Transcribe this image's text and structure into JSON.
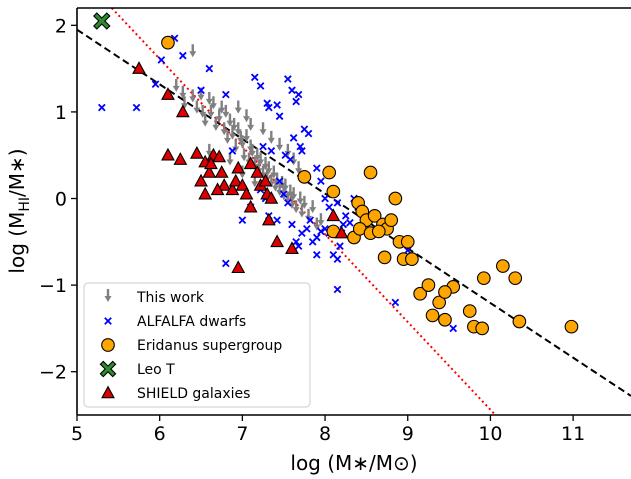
{
  "chart_data": {
    "type": "scatter",
    "xlabel": "log (M∗/M⊙)",
    "ylabel_parts": {
      "main": "log (M",
      "sub": "HI",
      "tail": "/M∗)"
    },
    "xlim": [
      5,
      11.7
    ],
    "ylim": [
      -2.5,
      2.2
    ],
    "x_ticks": [
      5,
      6,
      7,
      8,
      9,
      10,
      11
    ],
    "y_ticks": [
      -2,
      -1,
      0,
      1,
      2
    ],
    "x_tick_labels": [
      "5",
      "6",
      "7",
      "8",
      "9",
      "10",
      "11"
    ],
    "y_tick_labels": [
      "−2",
      "−1",
      "0",
      "1",
      "2"
    ],
    "grid": false,
    "legend_position": "lower-left",
    "lines": [
      {
        "style": "dashed",
        "color": "#000000",
        "points": [
          [
            5.0,
            1.95
          ],
          [
            11.7,
            -2.28
          ]
        ]
      },
      {
        "style": "dotted",
        "color": "#ff0000",
        "points": [
          [
            5.42,
            2.2
          ],
          [
            10.06,
            -2.5
          ]
        ]
      }
    ],
    "series": [
      {
        "name": "This work",
        "marker": "arrow-down",
        "color": "#808080",
        "points": [
          [
            6.4,
            1.7
          ],
          [
            6.2,
            1.3
          ],
          [
            6.28,
            1.22
          ],
          [
            6.3,
            1.1
          ],
          [
            6.4,
            1.18
          ],
          [
            6.45,
            1.05
          ],
          [
            6.5,
            1.2
          ],
          [
            6.52,
            1.0
          ],
          [
            6.55,
            0.9
          ],
          [
            6.6,
            1.15
          ],
          [
            6.62,
            1.0
          ],
          [
            6.65,
            1.1
          ],
          [
            6.68,
            0.85
          ],
          [
            6.72,
            0.95
          ],
          [
            6.75,
            1.05
          ],
          [
            6.78,
            0.8
          ],
          [
            6.8,
            1.0
          ],
          [
            6.82,
            0.7
          ],
          [
            6.85,
            0.9
          ],
          [
            6.88,
            0.75
          ],
          [
            6.9,
            0.85
          ],
          [
            6.92,
            0.6
          ],
          [
            6.95,
            0.8
          ],
          [
            6.98,
            0.7
          ],
          [
            7.0,
            0.65
          ],
          [
            7.02,
            0.5
          ],
          [
            7.05,
            0.72
          ],
          [
            7.08,
            0.45
          ],
          [
            7.1,
            0.6
          ],
          [
            7.12,
            0.55
          ],
          [
            7.15,
            0.4
          ],
          [
            7.18,
            0.5
          ],
          [
            7.2,
            0.35
          ],
          [
            7.22,
            0.45
          ],
          [
            7.25,
            0.3
          ],
          [
            7.28,
            0.4
          ],
          [
            7.3,
            0.25
          ],
          [
            7.32,
            0.35
          ],
          [
            7.35,
            0.2
          ],
          [
            7.38,
            0.3
          ],
          [
            7.4,
            0.15
          ],
          [
            7.42,
            0.22
          ],
          [
            7.45,
            0.1
          ],
          [
            7.48,
            0.18
          ],
          [
            7.5,
            0.05
          ],
          [
            7.52,
            0.15
          ],
          [
            7.55,
            0.0
          ],
          [
            7.58,
            0.08
          ],
          [
            7.6,
            -0.05
          ],
          [
            7.62,
            0.05
          ],
          [
            7.65,
            -0.1
          ],
          [
            7.7,
            0.0
          ],
          [
            7.72,
            -0.15
          ],
          [
            7.75,
            -0.05
          ],
          [
            7.8,
            -0.2
          ],
          [
            7.85,
            -0.1
          ],
          [
            7.9,
            -0.3
          ],
          [
            7.95,
            -0.25
          ],
          [
            7.55,
            0.55
          ],
          [
            7.62,
            0.45
          ],
          [
            7.68,
            0.35
          ],
          [
            6.95,
            1.05
          ],
          [
            7.05,
            0.95
          ],
          [
            7.1,
            0.85
          ],
          [
            7.25,
            0.8
          ],
          [
            7.35,
            0.7
          ],
          [
            7.45,
            0.62
          ],
          [
            6.6,
            0.55
          ],
          [
            6.85,
            0.45
          ],
          [
            7.0,
            0.3
          ],
          [
            7.15,
            0.2
          ]
        ]
      },
      {
        "name": "ALFALFA dwarfs",
        "marker": "x",
        "color": "#0000ff",
        "points": [
          [
            5.3,
            1.05
          ],
          [
            5.72,
            1.05
          ],
          [
            5.95,
            1.32
          ],
          [
            6.02,
            1.6
          ],
          [
            6.18,
            1.85
          ],
          [
            6.28,
            1.65
          ],
          [
            6.5,
            1.25
          ],
          [
            6.6,
            1.5
          ],
          [
            6.8,
            1.2
          ],
          [
            6.88,
            0.55
          ],
          [
            7.15,
            1.4
          ],
          [
            7.22,
            1.3
          ],
          [
            7.3,
            1.1
          ],
          [
            7.32,
            1.05
          ],
          [
            7.42,
            1.08
          ],
          [
            7.55,
            1.38
          ],
          [
            7.6,
            1.25
          ],
          [
            7.65,
            1.12
          ],
          [
            7.72,
            0.55
          ],
          [
            7.75,
            0.8
          ],
          [
            7.8,
            0.75
          ],
          [
            7.52,
            0.5
          ],
          [
            7.58,
            0.45
          ],
          [
            7.62,
            0.7
          ],
          [
            7.7,
            0.6
          ],
          [
            7.25,
            0.6
          ],
          [
            7.35,
            0.55
          ],
          [
            7.22,
            0.1
          ],
          [
            7.45,
            0.2
          ],
          [
            7.5,
            0.05
          ],
          [
            7.55,
            -0.05
          ],
          [
            7.28,
            0.0
          ],
          [
            7.32,
            -0.2
          ],
          [
            7.42,
            -0.25
          ],
          [
            7.6,
            -0.3
          ],
          [
            7.65,
            -0.5
          ],
          [
            7.68,
            -0.55
          ],
          [
            7.72,
            -0.4
          ],
          [
            7.78,
            -0.35
          ],
          [
            7.82,
            -0.25
          ],
          [
            7.85,
            -0.5
          ],
          [
            7.9,
            -0.45
          ],
          [
            7.95,
            -0.38
          ],
          [
            8.0,
            -0.35
          ],
          [
            8.05,
            -0.4
          ],
          [
            8.1,
            -0.65
          ],
          [
            8.15,
            -0.7
          ],
          [
            8.18,
            -0.55
          ],
          [
            8.2,
            -0.4
          ],
          [
            8.22,
            -0.3
          ],
          [
            8.25,
            -0.2
          ],
          [
            8.05,
            -0.1
          ],
          [
            8.0,
            0.0
          ],
          [
            8.15,
            -0.05
          ],
          [
            8.3,
            -0.28
          ],
          [
            8.35,
            -0.45
          ],
          [
            8.4,
            -0.1
          ],
          [
            8.45,
            -0.15
          ],
          [
            8.35,
            0.0
          ],
          [
            8.15,
            -1.05
          ],
          [
            7.9,
            -0.65
          ],
          [
            7.1,
            -0.1
          ],
          [
            6.8,
            -0.75
          ],
          [
            7.0,
            -0.25
          ],
          [
            7.9,
            0.35
          ],
          [
            7.95,
            0.2
          ],
          [
            8.85,
            -1.2
          ],
          [
            9.0,
            -0.6
          ],
          [
            9.55,
            -1.5
          ],
          [
            7.45,
            0.95
          ],
          [
            7.68,
            1.2
          ]
        ]
      },
      {
        "name": "Eridanus supergroup",
        "marker": "circle",
        "color": "#ffa500",
        "points": [
          [
            6.1,
            1.8
          ],
          [
            7.75,
            0.25
          ],
          [
            8.05,
            0.3
          ],
          [
            8.1,
            0.08
          ],
          [
            8.4,
            -0.05
          ],
          [
            8.45,
            -0.15
          ],
          [
            8.5,
            -0.25
          ],
          [
            8.55,
            0.3
          ],
          [
            8.6,
            -0.2
          ],
          [
            8.7,
            -0.3
          ],
          [
            8.75,
            -0.35
          ],
          [
            8.8,
            -0.25
          ],
          [
            8.85,
            0.0
          ],
          [
            8.35,
            -0.45
          ],
          [
            8.42,
            -0.35
          ],
          [
            8.55,
            -0.4
          ],
          [
            8.65,
            -0.38
          ],
          [
            8.72,
            -0.68
          ],
          [
            8.9,
            -0.5
          ],
          [
            8.95,
            -0.7
          ],
          [
            9.0,
            -0.5
          ],
          [
            9.05,
            -0.7
          ],
          [
            9.15,
            -1.1
          ],
          [
            9.3,
            -1.35
          ],
          [
            9.38,
            -1.2
          ],
          [
            9.45,
            -1.4
          ],
          [
            9.55,
            -1.02
          ],
          [
            9.75,
            -1.3
          ],
          [
            9.8,
            -1.48
          ],
          [
            9.9,
            -1.5
          ],
          [
            9.92,
            -0.92
          ],
          [
            10.15,
            -0.78
          ],
          [
            10.3,
            -0.92
          ],
          [
            10.35,
            -1.42
          ],
          [
            10.98,
            -1.48
          ],
          [
            8.1,
            -0.38
          ],
          [
            9.25,
            -1.0
          ],
          [
            9.45,
            -1.08
          ]
        ]
      },
      {
        "name": "Leo T",
        "marker": "x-filled",
        "color": "#2e8b2e",
        "points": [
          [
            5.3,
            2.05
          ]
        ]
      },
      {
        "name": "SHIELD galaxies",
        "marker": "triangle",
        "color": "#dd0000",
        "points": [
          [
            5.75,
            1.5
          ],
          [
            6.1,
            1.2
          ],
          [
            6.28,
            1.0
          ],
          [
            6.1,
            0.5
          ],
          [
            6.25,
            0.45
          ],
          [
            6.45,
            0.52
          ],
          [
            6.55,
            0.42
          ],
          [
            6.6,
            0.3
          ],
          [
            6.5,
            0.2
          ],
          [
            6.65,
            0.5
          ],
          [
            6.72,
            0.48
          ],
          [
            6.62,
            0.4
          ],
          [
            6.75,
            0.3
          ],
          [
            6.78,
            0.15
          ],
          [
            6.55,
            0.05
          ],
          [
            6.7,
            0.1
          ],
          [
            6.88,
            0.1
          ],
          [
            6.92,
            0.2
          ],
          [
            6.95,
            0.35
          ],
          [
            7.0,
            0.15
          ],
          [
            7.05,
            0.05
          ],
          [
            7.1,
            0.4
          ],
          [
            7.18,
            0.3
          ],
          [
            7.22,
            0.15
          ],
          [
            7.3,
            0.05
          ],
          [
            7.35,
            0.0
          ],
          [
            7.1,
            -0.1
          ],
          [
            7.32,
            -0.25
          ],
          [
            7.42,
            -0.5
          ],
          [
            7.6,
            -0.58
          ],
          [
            8.1,
            -0.2
          ],
          [
            8.2,
            -0.4
          ],
          [
            6.95,
            -0.8
          ],
          [
            7.28,
            0.2
          ]
        ]
      }
    ]
  }
}
